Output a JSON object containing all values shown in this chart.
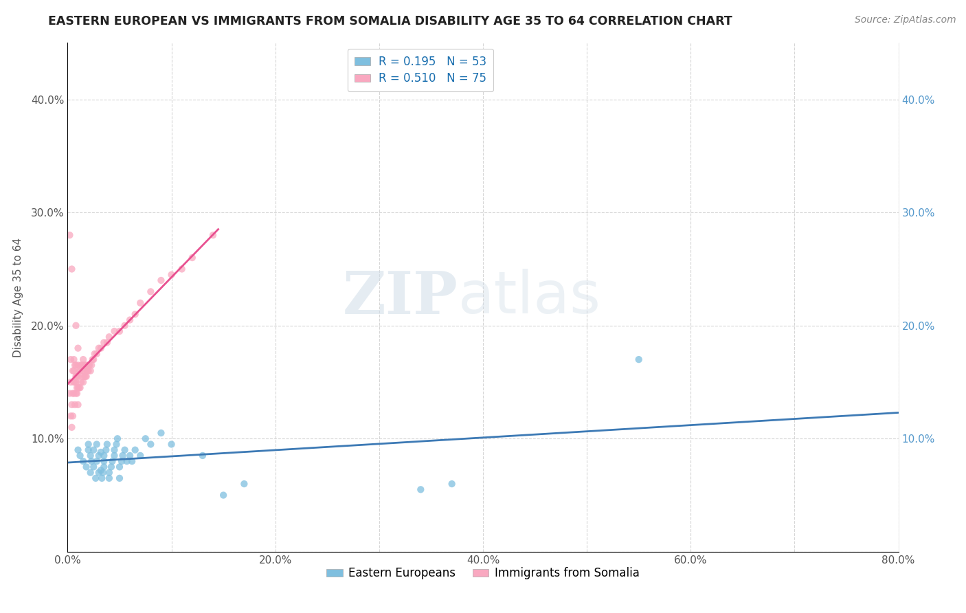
{
  "title": "EASTERN EUROPEAN VS IMMIGRANTS FROM SOMALIA DISABILITY AGE 35 TO 64 CORRELATION CHART",
  "source": "Source: ZipAtlas.com",
  "ylabel": "Disability Age 35 to 64",
  "xlim": [
    0.0,
    0.8
  ],
  "ylim": [
    0.0,
    0.45
  ],
  "xticks": [
    0.0,
    0.1,
    0.2,
    0.3,
    0.4,
    0.5,
    0.6,
    0.7,
    0.8
  ],
  "xticklabels": [
    "0.0%",
    "",
    "20.0%",
    "",
    "40.0%",
    "",
    "60.0%",
    "",
    "80.0%"
  ],
  "yticks": [
    0.0,
    0.1,
    0.2,
    0.3,
    0.4
  ],
  "yticklabels_left": [
    "",
    "10.0%",
    "20.0%",
    "30.0%",
    "40.0%"
  ],
  "yticklabels_right": [
    "",
    "10.0%",
    "20.0%",
    "30.0%",
    "40.0%"
  ],
  "R_eastern": 0.195,
  "N_eastern": 53,
  "R_somalia": 0.51,
  "N_somalia": 75,
  "color_eastern": "#7fbfdf",
  "color_somalia": "#f9a8c0",
  "color_eastern_line": "#3d7ab5",
  "color_somalia_line": "#e85090",
  "legend_label_eastern": "Eastern Europeans",
  "legend_label_somalia": "Immigrants from Somalia",
  "eastern_x": [
    0.01,
    0.012,
    0.015,
    0.018,
    0.02,
    0.02,
    0.022,
    0.022,
    0.023,
    0.025,
    0.025,
    0.027,
    0.028,
    0.028,
    0.03,
    0.03,
    0.032,
    0.032,
    0.033,
    0.034,
    0.035,
    0.035,
    0.035,
    0.037,
    0.038,
    0.04,
    0.04,
    0.042,
    0.043,
    0.045,
    0.045,
    0.047,
    0.048,
    0.05,
    0.05,
    0.052,
    0.053,
    0.055,
    0.057,
    0.06,
    0.062,
    0.065,
    0.07,
    0.075,
    0.08,
    0.09,
    0.1,
    0.13,
    0.15,
    0.17,
    0.34,
    0.37,
    0.55
  ],
  "eastern_y": [
    0.09,
    0.085,
    0.08,
    0.075,
    0.09,
    0.095,
    0.07,
    0.085,
    0.08,
    0.075,
    0.09,
    0.065,
    0.08,
    0.095,
    0.07,
    0.085,
    0.072,
    0.088,
    0.065,
    0.07,
    0.075,
    0.08,
    0.085,
    0.09,
    0.095,
    0.065,
    0.07,
    0.075,
    0.08,
    0.085,
    0.09,
    0.095,
    0.1,
    0.065,
    0.075,
    0.08,
    0.085,
    0.09,
    0.08,
    0.085,
    0.08,
    0.09,
    0.085,
    0.1,
    0.095,
    0.105,
    0.095,
    0.085,
    0.05,
    0.06,
    0.055,
    0.06,
    0.17
  ],
  "somalia_x": [
    0.002,
    0.003,
    0.003,
    0.003,
    0.004,
    0.004,
    0.005,
    0.005,
    0.005,
    0.006,
    0.006,
    0.006,
    0.006,
    0.007,
    0.007,
    0.007,
    0.008,
    0.008,
    0.008,
    0.008,
    0.009,
    0.009,
    0.009,
    0.01,
    0.01,
    0.01,
    0.01,
    0.011,
    0.011,
    0.012,
    0.012,
    0.013,
    0.013,
    0.014,
    0.014,
    0.015,
    0.015,
    0.016,
    0.016,
    0.017,
    0.017,
    0.018,
    0.018,
    0.019,
    0.02,
    0.02,
    0.021,
    0.022,
    0.023,
    0.024,
    0.025,
    0.026,
    0.028,
    0.03,
    0.032,
    0.035,
    0.038,
    0.04,
    0.045,
    0.05,
    0.055,
    0.06,
    0.065,
    0.07,
    0.08,
    0.09,
    0.1,
    0.11,
    0.12,
    0.14,
    0.002,
    0.004,
    0.008,
    0.01,
    0.015
  ],
  "somalia_y": [
    0.14,
    0.15,
    0.17,
    0.12,
    0.13,
    0.11,
    0.12,
    0.14,
    0.16,
    0.14,
    0.15,
    0.16,
    0.17,
    0.13,
    0.15,
    0.165,
    0.14,
    0.15,
    0.155,
    0.165,
    0.14,
    0.145,
    0.155,
    0.13,
    0.145,
    0.155,
    0.165,
    0.145,
    0.16,
    0.145,
    0.16,
    0.15,
    0.165,
    0.155,
    0.165,
    0.15,
    0.16,
    0.155,
    0.165,
    0.155,
    0.16,
    0.155,
    0.165,
    0.16,
    0.16,
    0.165,
    0.165,
    0.16,
    0.165,
    0.17,
    0.17,
    0.175,
    0.175,
    0.18,
    0.18,
    0.185,
    0.185,
    0.19,
    0.195,
    0.195,
    0.2,
    0.205,
    0.21,
    0.22,
    0.23,
    0.24,
    0.245,
    0.25,
    0.26,
    0.28,
    0.28,
    0.25,
    0.2,
    0.18,
    0.17
  ]
}
